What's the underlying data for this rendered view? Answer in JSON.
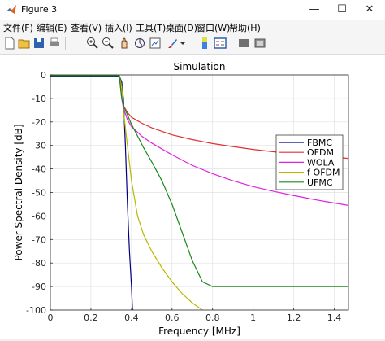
{
  "window": {
    "title": "Figure 3",
    "minimize_glyph": "—",
    "maximize_glyph": "☐",
    "close_glyph": "✕"
  },
  "menu": {
    "items": [
      "文件(F)",
      "编辑(E)",
      "查看(V)",
      "插入(I)",
      "工具(T)",
      "桌面(D)",
      "窗口(W)",
      "帮助(H)"
    ]
  },
  "toolbar": {
    "icons": [
      "new-figure-icon",
      "open-file-icon",
      "save-icon",
      "print-icon",
      "zoom-in-icon",
      "zoom-out-icon",
      "pan-icon",
      "rotate-3d-icon",
      "data-cursor-icon",
      "brush-icon",
      "insert-colorbar-icon",
      "insert-legend-icon",
      "hide-plot-tools-icon",
      "show-plot-tools-icon"
    ]
  },
  "chart_data": {
    "type": "line",
    "title": "Simulation",
    "xlabel": "Frequency [MHz]",
    "ylabel": "Power Spectral Density [dB]",
    "xlim": [
      0,
      1.47
    ],
    "ylim": [
      -100,
      0
    ],
    "xticks": [
      0,
      0.2,
      0.4,
      0.6,
      0.8,
      1,
      1.2,
      1.4
    ],
    "xtick_labels": [
      "0",
      "0.2",
      "0.4",
      "0.6",
      "0.8",
      "1",
      "1.2",
      "1.4"
    ],
    "yticks": [
      0,
      -10,
      -20,
      -30,
      -40,
      -50,
      -60,
      -70,
      -80,
      -90,
      -100
    ],
    "ytick_labels": [
      "0",
      "-10",
      "-20",
      "-30",
      "-40",
      "-50",
      "-60",
      "-70",
      "-80",
      "-90",
      "-100"
    ],
    "grid": true,
    "legend_position": "top-right",
    "series": [
      {
        "name": "FBMC",
        "color": "#000080",
        "x": [
          0,
          0.34,
          0.352,
          0.36,
          0.37,
          0.38,
          0.39,
          0.4,
          0.405,
          0.41
        ],
        "y": [
          -0.5,
          -0.5,
          -3,
          -10,
          -30,
          -55,
          -75,
          -90,
          -100,
          -100
        ]
      },
      {
        "name": "OFDM",
        "color": "#e03030",
        "x": [
          0,
          0.34,
          0.352,
          0.36,
          0.38,
          0.4,
          0.45,
          0.5,
          0.6,
          0.7,
          0.8,
          0.9,
          1.0,
          1.1,
          1.2,
          1.3,
          1.4,
          1.47
        ],
        "y": [
          -0.3,
          -0.3,
          -10,
          -13,
          -16,
          -18,
          -20.5,
          -22.5,
          -25.5,
          -27.5,
          -29.2,
          -30.5,
          -31.7,
          -32.7,
          -33.6,
          -34.3,
          -35,
          -35.5
        ]
      },
      {
        "name": "WOLA",
        "color": "#e020e0",
        "x": [
          0,
          0.34,
          0.352,
          0.36,
          0.38,
          0.4,
          0.45,
          0.5,
          0.6,
          0.7,
          0.8,
          0.9,
          1.0,
          1.1,
          1.2,
          1.3,
          1.4,
          1.47
        ],
        "y": [
          -0.3,
          -0.3,
          -10,
          -14,
          -19,
          -22,
          -26,
          -29,
          -34,
          -38.5,
          -42,
          -45,
          -47.5,
          -49.5,
          -51.3,
          -53,
          -54.5,
          -55.5
        ]
      },
      {
        "name": "f-OFDM",
        "color": "#b8b800",
        "x": [
          0,
          0.34,
          0.352,
          0.36,
          0.38,
          0.4,
          0.43,
          0.46,
          0.5,
          0.55,
          0.6,
          0.65,
          0.7,
          0.75
        ],
        "y": [
          -0.3,
          -0.3,
          -5,
          -15,
          -30,
          -45,
          -60,
          -68,
          -75,
          -82,
          -88,
          -93,
          -97,
          -100
        ]
      },
      {
        "name": "UFMC",
        "color": "#1a8a1a",
        "x": [
          0,
          0.34,
          0.352,
          0.36,
          0.38,
          0.4,
          0.43,
          0.46,
          0.5,
          0.55,
          0.6,
          0.65,
          0.7,
          0.75,
          0.8,
          1.47
        ],
        "y": [
          -0.3,
          -0.3,
          -10,
          -13,
          -17,
          -21,
          -26,
          -31,
          -37,
          -45,
          -55,
          -67,
          -79,
          -88,
          -90,
          -90
        ]
      }
    ]
  }
}
